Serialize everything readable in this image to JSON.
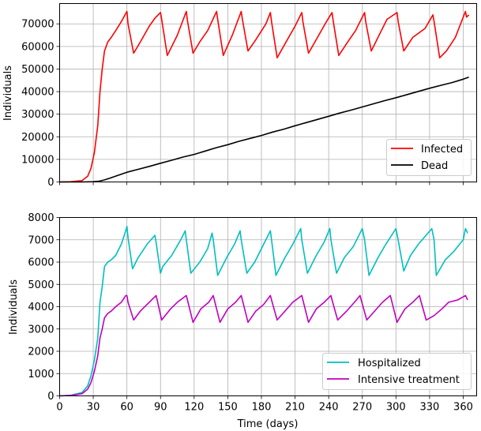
{
  "chart_data": [
    {
      "type": "line",
      "xlabel": "",
      "ylabel": "Individuals",
      "xlim": [
        0,
        372
      ],
      "ylim": [
        0,
        79000
      ],
      "xticks": [
        0,
        30,
        60,
        90,
        120,
        150,
        180,
        210,
        240,
        270,
        300,
        330,
        360
      ],
      "yticks": [
        0,
        10000,
        20000,
        30000,
        40000,
        50000,
        60000,
        70000
      ],
      "yticklabels": [
        "0",
        "10000",
        "20000",
        "30000",
        "40000",
        "50000",
        "60000",
        "70000"
      ],
      "grid": true,
      "legend_position": "lower-right",
      "series": [
        {
          "name": "Infected",
          "color": "#ff0000",
          "x": [
            0,
            10,
            20,
            25,
            28,
            31,
            34,
            36,
            38,
            40,
            43,
            46,
            50,
            55,
            60,
            61,
            66,
            72,
            80,
            85,
            90,
            91,
            96,
            105,
            113,
            114,
            119,
            125,
            132,
            140,
            141,
            146,
            154,
            162,
            163,
            168,
            175,
            184,
            188,
            189,
            194,
            202,
            210,
            216,
            217,
            222,
            230,
            238,
            243,
            244,
            249,
            257,
            264,
            272,
            273,
            278,
            286,
            292,
            301,
            302,
            307,
            315,
            326,
            333,
            334,
            339,
            345,
            353,
            362,
            363,
            365
          ],
          "y": [
            0,
            100,
            600,
            2500,
            6000,
            13000,
            25000,
            40000,
            50000,
            58000,
            62000,
            64000,
            67000,
            71000,
            75500,
            70000,
            57000,
            62000,
            69000,
            72500,
            75000,
            72000,
            56000,
            65000,
            75500,
            71500,
            57000,
            62000,
            67000,
            75500,
            72000,
            56000,
            65000,
            75500,
            72000,
            58000,
            63000,
            70000,
            75000,
            71000,
            55000,
            62000,
            69000,
            75000,
            71000,
            57000,
            64000,
            71000,
            75000,
            71500,
            56000,
            62000,
            67000,
            75000,
            71000,
            58000,
            66000,
            72000,
            75000,
            71000,
            58000,
            64000,
            68000,
            74000,
            71000,
            55000,
            58000,
            64000,
            75500,
            73000,
            74000
          ]
        },
        {
          "name": "Dead",
          "color": "#000000",
          "x": [
            0,
            20,
            30,
            35,
            40,
            45,
            50,
            60,
            70,
            80,
            90,
            100,
            110,
            120,
            130,
            140,
            150,
            160,
            170,
            180,
            190,
            200,
            210,
            220,
            230,
            240,
            250,
            260,
            270,
            280,
            290,
            300,
            310,
            320,
            330,
            340,
            350,
            360,
            365
          ],
          "y": [
            0,
            0,
            100,
            300,
            900,
            1700,
            2600,
            4300,
            5600,
            6900,
            8300,
            9600,
            11000,
            12200,
            13700,
            15200,
            16500,
            18000,
            19300,
            20600,
            22100,
            23400,
            24900,
            26300,
            27700,
            29100,
            30500,
            31800,
            33200,
            34600,
            36000,
            37300,
            38700,
            40100,
            41500,
            42800,
            44000,
            45500,
            46400
          ]
        }
      ]
    },
    {
      "type": "line",
      "xlabel": "Time (days)",
      "ylabel": "Individuals",
      "xlim": [
        0,
        372
      ],
      "ylim": [
        0,
        8000
      ],
      "xticks": [
        0,
        30,
        60,
        90,
        120,
        150,
        180,
        210,
        240,
        270,
        300,
        330,
        360
      ],
      "yticks": [
        0,
        1000,
        2000,
        3000,
        4000,
        5000,
        6000,
        7000,
        8000
      ],
      "grid": true,
      "legend_position": "lower-right",
      "series": [
        {
          "name": "Hospitalized",
          "color": "#00bfbf",
          "x": [
            0,
            10,
            20,
            25,
            28,
            31,
            34,
            36,
            38,
            40,
            43,
            46,
            50,
            55,
            59,
            60,
            61,
            65,
            70,
            78,
            85,
            86,
            90,
            92,
            100,
            108,
            112,
            113,
            117,
            125,
            132,
            136,
            137,
            141,
            149,
            156,
            161,
            162,
            167,
            174,
            182,
            188,
            189,
            193,
            201,
            208,
            215,
            216,
            221,
            229,
            236,
            241,
            242,
            247,
            254,
            262,
            270,
            272,
            276,
            284,
            291,
            300,
            302,
            307,
            313,
            320,
            332,
            334,
            336,
            344,
            352,
            360,
            362,
            364
          ],
          "y": [
            0,
            30,
            150,
            450,
            900,
            1600,
            2600,
            4200,
            4900,
            5800,
            6000,
            6100,
            6300,
            6800,
            7400,
            7600,
            7100,
            5700,
            6200,
            6800,
            7200,
            6900,
            5500,
            5800,
            6300,
            7000,
            7400,
            7000,
            5500,
            6000,
            6600,
            7300,
            7000,
            5400,
            6200,
            6800,
            7400,
            7000,
            5500,
            6000,
            6800,
            7400,
            7000,
            5400,
            6200,
            6800,
            7500,
            7000,
            5500,
            6300,
            6900,
            7500,
            7000,
            5500,
            6200,
            6700,
            7500,
            7000,
            5400,
            6200,
            6800,
            7500,
            7000,
            5600,
            6300,
            6800,
            7500,
            7000,
            5400,
            6100,
            6500,
            7000,
            7500,
            7300
          ]
        },
        {
          "name": "Intensive treatment",
          "color": "#bf00bf",
          "x": [
            0,
            10,
            20,
            25,
            28,
            31,
            34,
            36,
            38,
            40,
            43,
            46,
            50,
            55,
            59,
            60,
            61,
            66,
            72,
            80,
            86,
            87,
            91,
            99,
            105,
            113,
            114,
            119,
            126,
            133,
            137,
            138,
            143,
            150,
            157,
            162,
            163,
            168,
            175,
            182,
            188,
            189,
            194,
            201,
            208,
            216,
            217,
            222,
            229,
            236,
            242,
            243,
            248,
            256,
            263,
            268,
            269,
            274,
            281,
            288,
            295,
            296,
            301,
            308,
            315,
            321,
            322,
            327,
            334,
            341,
            347,
            355,
            362,
            364
          ],
          "y": [
            0,
            20,
            100,
            300,
            600,
            1100,
            1800,
            2600,
            3000,
            3500,
            3700,
            3800,
            4000,
            4200,
            4500,
            4500,
            4200,
            3400,
            3800,
            4200,
            4500,
            4300,
            3400,
            3900,
            4200,
            4500,
            4300,
            3300,
            3900,
            4200,
            4500,
            4300,
            3300,
            3900,
            4200,
            4500,
            4300,
            3300,
            3800,
            4100,
            4500,
            4300,
            3400,
            3800,
            4200,
            4500,
            4300,
            3300,
            3900,
            4200,
            4500,
            4300,
            3400,
            3800,
            4200,
            4500,
            4300,
            3400,
            3800,
            4200,
            4500,
            4300,
            3300,
            3900,
            4200,
            4500,
            4300,
            3400,
            3600,
            3900,
            4200,
            4300,
            4500,
            4300
          ]
        }
      ]
    }
  ]
}
